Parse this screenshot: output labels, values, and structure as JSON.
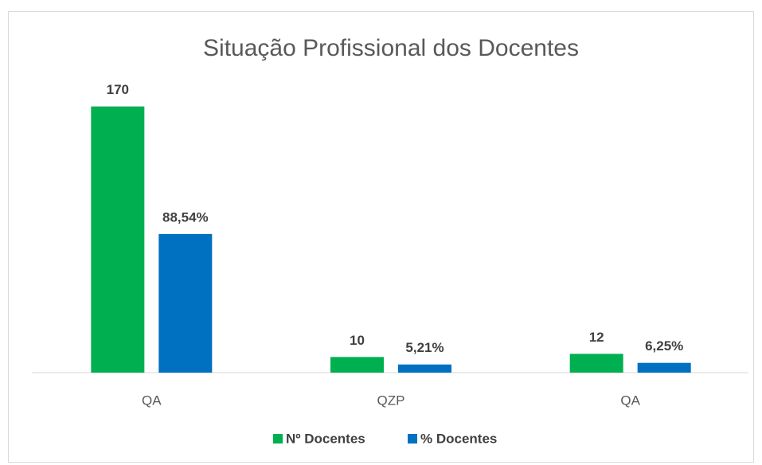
{
  "chart_data": {
    "type": "bar",
    "title": "Situação Profissional dos Docentes",
    "categories": [
      "QA",
      "QZP",
      "QA"
    ],
    "series": [
      {
        "name": "Nº Docentes",
        "color": "#00b050",
        "values": [
          170,
          10,
          12
        ]
      },
      {
        "name": "% Docentes",
        "color": "#0070c0",
        "values": [
          88.54,
          5.21,
          6.25
        ],
        "value_labels": [
          "88,54%",
          "5,21%",
          "6,25%"
        ]
      }
    ],
    "ylim": [
      0,
      180
    ],
    "legend": "bottom"
  }
}
